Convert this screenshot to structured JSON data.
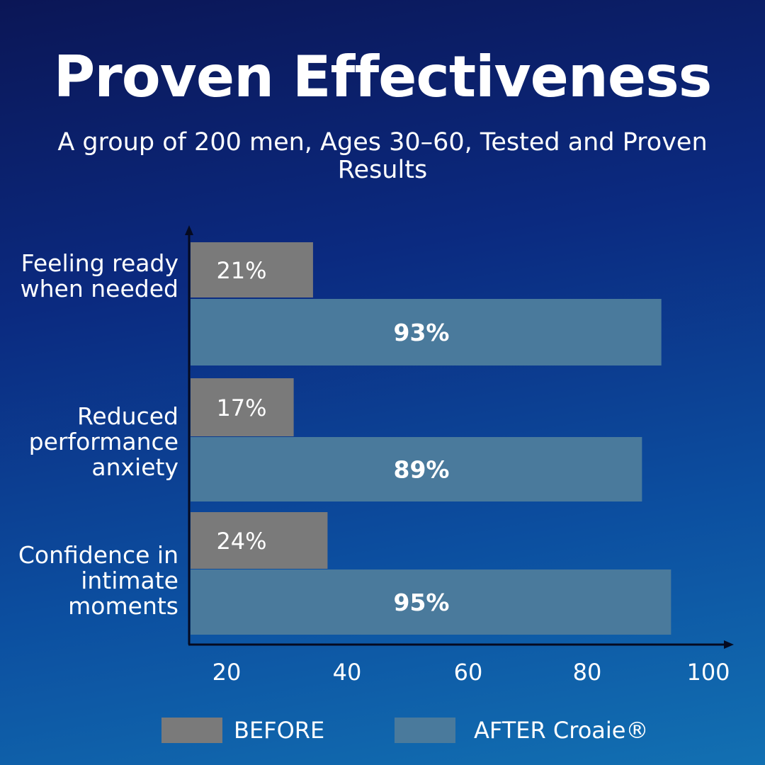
{
  "title": "Proven Effectiveness",
  "subtitle": "A group of 200 men, Ages 30–60, Tested and Proven Results",
  "chart_data": {
    "type": "bar",
    "orientation": "horizontal",
    "categories": [
      "Feeling ready when needed",
      "Reduced performance anxiety",
      "Confidence in intimate moments"
    ],
    "series": [
      {
        "name": "BEFORE",
        "values": [
          21,
          17,
          24
        ],
        "labels": [
          "21%",
          "17%",
          "24%"
        ],
        "color": "#7a7a7a"
      },
      {
        "name": "AFTER Croaie®",
        "values": [
          93,
          89,
          95
        ],
        "labels": [
          "93%",
          "89%",
          "95%"
        ],
        "color": "#4a7a9c"
      }
    ],
    "x_ticks": [
      "20",
      "40",
      "60",
      "80",
      "100"
    ],
    "legend": "bottom",
    "grid": false
  }
}
